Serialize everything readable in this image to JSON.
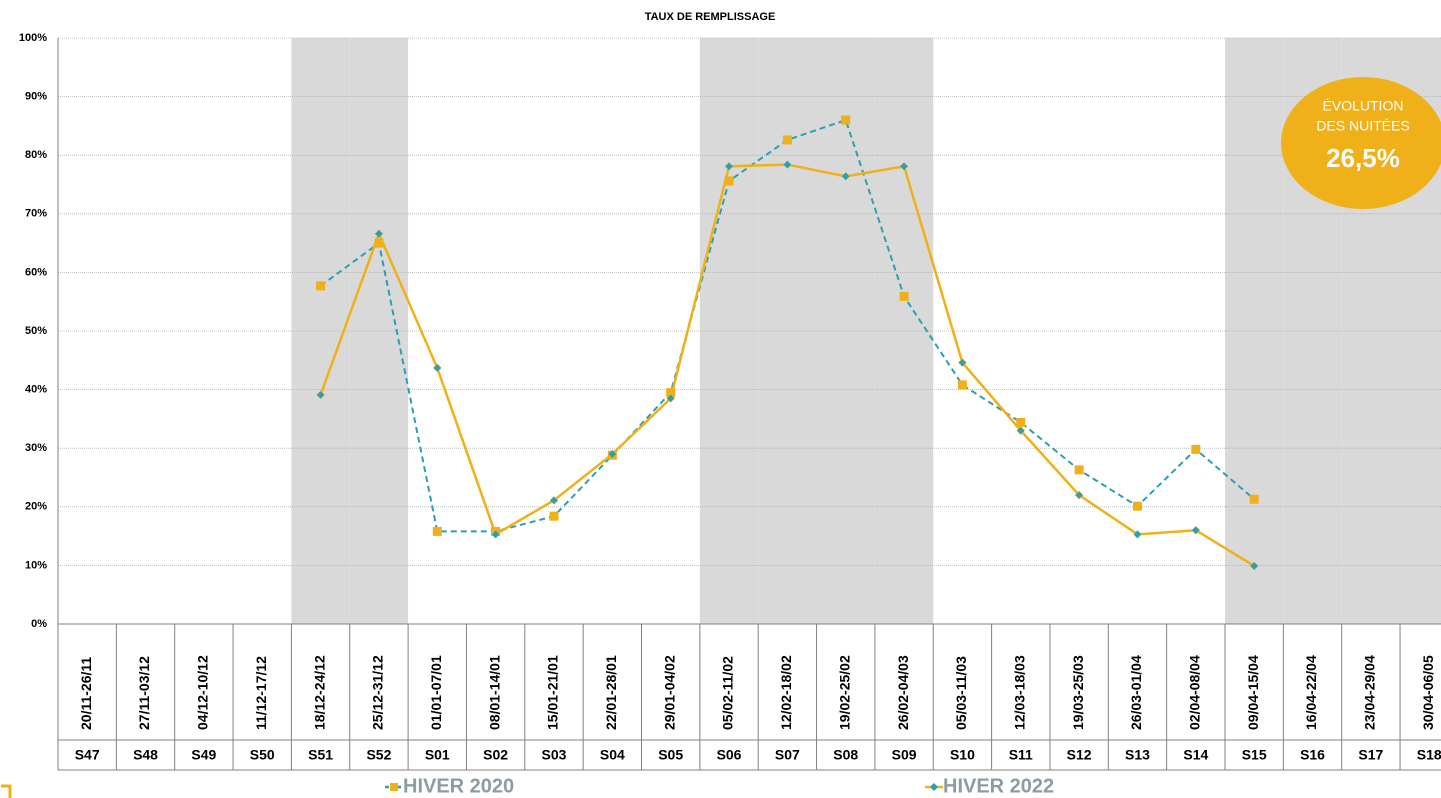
{
  "chart_data": {
    "type": "line",
    "title": "TAUX DE REMPLISSAGE",
    "categories": [
      "S47",
      "S48",
      "S49",
      "S50",
      "S51",
      "S52",
      "S01",
      "S02",
      "S03",
      "S04",
      "S05",
      "S06",
      "S07",
      "S08",
      "S09",
      "S10",
      "S11",
      "S12",
      "S13",
      "S14",
      "S15",
      "S16",
      "S17",
      "S18"
    ],
    "date_ranges": [
      "20/11-26/11",
      "27/11-03/12",
      "04/12-10/12",
      "11/12-17/12",
      "18/12-24/12",
      "25/12-31/12",
      "01/01-07/01",
      "08/01-14/01",
      "15/01-21/01",
      "22/01-28/01",
      "29/01-04/02",
      "05/02-11/02",
      "12/02-18/02",
      "19/02-25/02",
      "26/02-04/03",
      "05/03-11/03",
      "12/03-18/03",
      "19/03-25/03",
      "26/03-01/04",
      "02/04-08/04",
      "09/04-15/04",
      "16/04-22/04",
      "23/04-29/04",
      "30/04-06/05"
    ],
    "series": [
      {
        "name": "HIVER 2020",
        "color": "#2aa0b4",
        "marker_color": "#f0b01a",
        "dashed": true,
        "marker": "square",
        "values": [
          null,
          null,
          null,
          null,
          57.7,
          65,
          15.8,
          15.8,
          18.4,
          28.8,
          39.5,
          75.6,
          82.6,
          86,
          55.9,
          40.8,
          34.4,
          26.3,
          20.1,
          29.8,
          21.3,
          null,
          null,
          null
        ]
      },
      {
        "name": "HIVER 2022",
        "color": "#f0b01a",
        "marker_color": "#2aa0b4",
        "dashed": false,
        "marker": "diamond",
        "values": [
          null,
          null,
          null,
          null,
          39.1,
          66.6,
          43.7,
          15.3,
          21.1,
          29.0,
          38.5,
          78.1,
          78.4,
          76.4,
          78.1,
          44.6,
          33.0,
          22.0,
          15.3,
          16.0,
          9.9,
          null,
          null,
          null
        ]
      }
    ],
    "ylim": [
      0,
      100
    ],
    "yticks": [
      {
        "value": 0,
        "label": "0%"
      },
      {
        "value": 10,
        "label": "10%"
      },
      {
        "value": 20,
        "label": "20%"
      },
      {
        "value": 30,
        "label": "30%"
      },
      {
        "value": 40,
        "label": "40%"
      },
      {
        "value": 50,
        "label": "50%"
      },
      {
        "value": 60,
        "label": "60%"
      },
      {
        "value": 70,
        "label": "70%"
      },
      {
        "value": 80,
        "label": "80%"
      },
      {
        "value": 90,
        "label": "90%"
      },
      {
        "value": 100,
        "label": "100%"
      }
    ],
    "grid": true,
    "shaded_categories": [
      4,
      5,
      11,
      12,
      13,
      14,
      20,
      21,
      22,
      23
    ],
    "shade_color": "#d9d9d9",
    "annotation": {
      "lines": [
        "ÉVOLUTION",
        "DES NUITÉES"
      ],
      "value": "26,5%",
      "color": "#f0b01a"
    }
  }
}
